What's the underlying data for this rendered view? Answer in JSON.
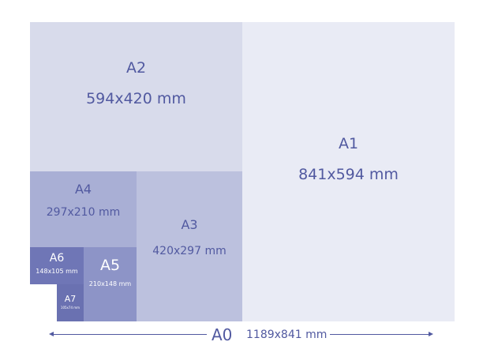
{
  "sheets": {
    "a0": {
      "name": "A0",
      "size": "1189x841 mm"
    },
    "a1": {
      "name": "A1",
      "size": "841x594 mm"
    },
    "a2": {
      "name": "A2",
      "size": "594x420 mm"
    },
    "a3": {
      "name": "A3",
      "size": "420x297 mm"
    },
    "a4": {
      "name": "A4",
      "size": "297x210 mm"
    },
    "a5": {
      "name": "A5",
      "size": "210x148 mm"
    },
    "a6": {
      "name": "A6",
      "size": "148x105 mm"
    },
    "a7": {
      "name": "A7",
      "size": "105x74 mm"
    }
  },
  "colors": {
    "text": "#5159a0",
    "a1": "#e9ebf5",
    "a2": "#d8dbeb",
    "a3": "#bcc1de",
    "a4": "#a9afd5",
    "a5": "#8d94c7",
    "a6": "#6f76b6",
    "a7": "#6a71b1"
  }
}
